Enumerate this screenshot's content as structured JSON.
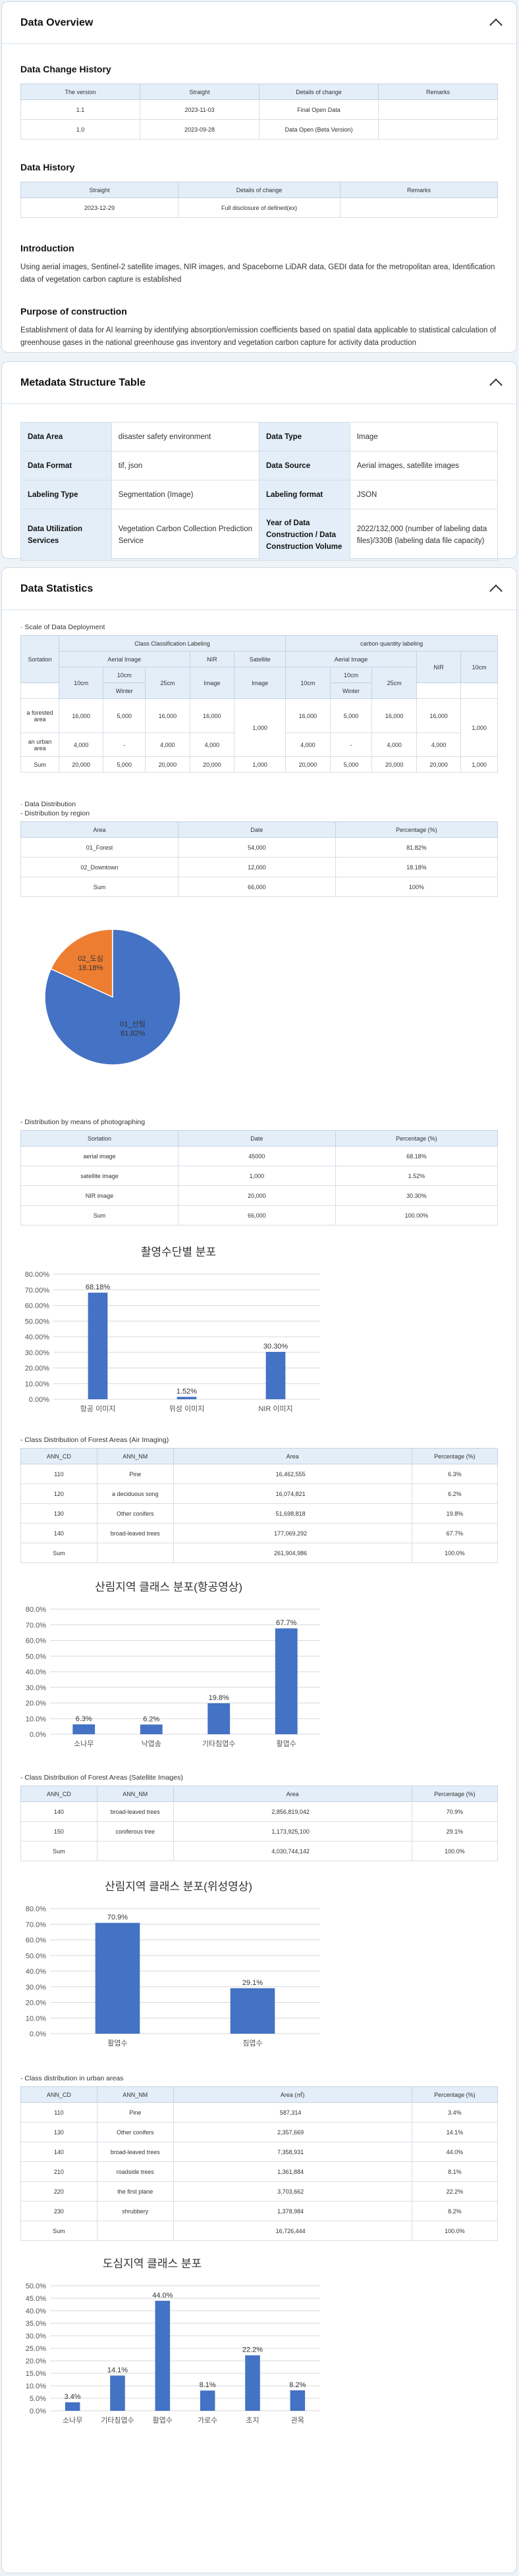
{
  "overview": {
    "title": "Data Overview",
    "change_history": {
      "title": "Data Change History",
      "headers": [
        "The version",
        "Straight",
        "Details of change",
        "Remarks"
      ],
      "rows": [
        [
          "1.1",
          "2023-11-03",
          "Final Open Data",
          ""
        ],
        [
          "1.0",
          "2023-09-28",
          "Data Open (Beta Version)",
          ""
        ]
      ]
    },
    "data_history": {
      "title": "Data History",
      "headers": [
        "Straight",
        "Details of change",
        "Remarks"
      ],
      "rows": [
        [
          "2023-12-29",
          "Full disclosure of defined(ex)",
          ""
        ]
      ]
    },
    "intro": {
      "title": "Introduction",
      "text": "Using aerial images, Sentinel-2 satellite images, NIR images, and Spaceborne LiDAR data, GEDI data for the metropolitan area, Identification data of vegetation carbon capture is established"
    },
    "purpose": {
      "title": "Purpose of construction",
      "text": "Establishment of data for AI learning by identifying absorption/emission coefficients based on spatial data applicable to statistical calculation of greenhouse gases in the national greenhouse gas inventory and vegetation carbon capture for activity data production"
    }
  },
  "metadata": {
    "title": "Metadata Structure Table",
    "rows": [
      [
        "Data Area",
        "disaster safety environment",
        "Data Type",
        "Image"
      ],
      [
        "Data Format",
        "tif, json",
        "Data Source",
        "Aerial images, satellite images"
      ],
      [
        "Labeling Type",
        "Segmentation (Image)",
        "Labeling format",
        "JSON"
      ],
      [
        "Data Utilization Services",
        "Vegetation Carbon Collection Prediction Service",
        "Year of Data Construction / Data Construction Volume",
        "2022/132,000 (number of labeling data files)/330B (labeling data file capacity)"
      ]
    ]
  },
  "stats": {
    "title": "Data Statistics",
    "scale": {
      "caption": "· Scale of Data Deployment",
      "group1": "Class Classification Labeling",
      "group2": "carbon quantity labeling",
      "sortation": "Sortation",
      "aerial": "Aerial Image",
      "nir": "NIR",
      "satellite": "Satellite",
      "image": "Image",
      "winter": "Winter",
      "res": [
        "10cm",
        "10cm",
        "25cm"
      ],
      "rows": [
        {
          "label": "a forested area",
          "v": [
            "16,000",
            "5,000",
            "16,000",
            "16,000",
            "",
            "16,000",
            "5,000",
            "16,000",
            "16,000",
            ""
          ]
        },
        {
          "label": "an urban area",
          "v": [
            "4,000",
            "-",
            "4,000",
            "4,000",
            "",
            "4,000",
            "-",
            "4,000",
            "4,000",
            ""
          ]
        },
        {
          "label": "Sum",
          "v": [
            "20,000",
            "5,000",
            "20,000",
            "20,000",
            "1,000",
            "20,000",
            "5,000",
            "20,000",
            "20,000",
            "1,000"
          ]
        }
      ],
      "merged_sat": "1,000",
      "merged_last": "1,000"
    },
    "dist": {
      "caption1": "· Data Distribution",
      "caption2": "- Distribution by region",
      "headers": [
        "Area",
        "Date",
        "Percentage (%)"
      ],
      "rows": [
        [
          "01_Forest",
          "54,000",
          "81.82%"
        ],
        [
          "02_Downtown",
          "12,000",
          "18.18%"
        ],
        [
          "Sum",
          "66,000",
          "100%"
        ]
      ]
    },
    "means": {
      "caption": "- Distribution by means of photographing",
      "headers": [
        "Sortation",
        "Date",
        "Percentage (%)"
      ],
      "rows": [
        [
          "aerial image",
          "45000",
          "68.18%"
        ],
        [
          "satellite image",
          "1,000",
          "1.52%"
        ],
        [
          "NIR image",
          "20,000",
          "30.30%"
        ],
        [
          "Sum",
          "66,000",
          "100.00%"
        ]
      ]
    },
    "forest_air": {
      "caption": "- Class Distribution of Forest Areas (Air Imaging)",
      "headers": [
        "ANN_CD",
        "ANN_NM",
        "Area",
        "Percentage (%)"
      ],
      "rows": [
        [
          "110",
          "Pine",
          "16,462,555",
          "6.3%"
        ],
        [
          "120",
          "a deciduous song",
          "16,074,821",
          "6.2%"
        ],
        [
          "130",
          "Other conifers",
          "51,698,818",
          "19.8%"
        ],
        [
          "140",
          "broad-leaved trees",
          "177,069,292",
          "67.7%"
        ],
        [
          "Sum",
          "",
          "261,904,986",
          "100.0%"
        ]
      ]
    },
    "forest_sat": {
      "caption": "- Class Distribution of Forest Areas (Satellite Images)",
      "headers": [
        "ANN_CD",
        "ANN_NM",
        "Area",
        "Percentage (%)"
      ],
      "rows": [
        [
          "140",
          "broad-leaved trees",
          "2,856,819,042",
          "70.9%"
        ],
        [
          "150",
          "coniferous tree",
          "1,173,925,100",
          "29.1%"
        ],
        [
          "Sum",
          "",
          "4,030,744,142",
          "100.0%"
        ]
      ]
    },
    "urban": {
      "caption": "- Class distribution in urban areas",
      "headers": [
        "ANN_CD",
        "ANN_NM",
        "Area (㎡)",
        "Percentage (%)"
      ],
      "rows": [
        [
          "110",
          "Pine",
          "587,314",
          "3.4%"
        ],
        [
          "130",
          "Other conifers",
          "2,357,669",
          "14.1%"
        ],
        [
          "140",
          "broad-leaved trees",
          "7,358,931",
          "44.0%"
        ],
        [
          "210",
          "roadside trees",
          "1,361,884",
          "8.1%"
        ],
        [
          "220",
          "the first plane",
          "3,703,662",
          "22.2%"
        ],
        [
          "230",
          "shrubbery",
          "1,378,984",
          "8.2%"
        ],
        [
          "Sum",
          "",
          "16,726,444",
          "100.0%"
        ]
      ]
    }
  },
  "chart_data": [
    {
      "type": "pie",
      "labels": [
        "01_산림",
        "02_도심"
      ],
      "values": [
        81.82,
        18.18
      ],
      "value_labels": [
        "81.82%",
        "18.18%"
      ],
      "colors": [
        "#4472c4",
        "#ed7d31"
      ]
    },
    {
      "type": "bar",
      "title": "촬영수단별 분포",
      "categories": [
        "항공 이미지",
        "위성 이미지",
        "NIR 이미지"
      ],
      "values": [
        68.18,
        1.52,
        30.3
      ],
      "value_labels": [
        "68.18%",
        "1.52%",
        "30.30%"
      ],
      "yticks": [
        "0.00%",
        "10.00%",
        "20.00%",
        "30.00%",
        "40.00%",
        "50.00%",
        "60.00%",
        "70.00%",
        "80.00%"
      ],
      "ylim": [
        0,
        80
      ],
      "grid": true,
      "color": "#4472c4"
    },
    {
      "type": "bar",
      "title": "산림지역 클래스 분포(항공영상)",
      "categories": [
        "소나무",
        "낙엽송",
        "기타침엽수",
        "활엽수"
      ],
      "values": [
        6.3,
        6.2,
        19.8,
        67.7
      ],
      "value_labels": [
        "6.3%",
        "6.2%",
        "19.8%",
        "67.7%"
      ],
      "yticks": [
        "0.0%",
        "10.0%",
        "20.0%",
        "30.0%",
        "40.0%",
        "50.0%",
        "60.0%",
        "70.0%",
        "80.0%"
      ],
      "ylim": [
        0,
        80
      ],
      "grid": true,
      "color": "#4472c4"
    },
    {
      "type": "bar",
      "title": "산림지역 클래스 분포(위성영상)",
      "categories": [
        "활엽수",
        "침엽수"
      ],
      "values": [
        70.9,
        29.1
      ],
      "value_labels": [
        "70.9%",
        "29.1%"
      ],
      "yticks": [
        "0.0%",
        "10.0%",
        "20.0%",
        "30.0%",
        "40.0%",
        "50.0%",
        "60.0%",
        "70.0%",
        "80.0%"
      ],
      "ylim": [
        0,
        80
      ],
      "grid": true,
      "color": "#4472c4"
    },
    {
      "type": "bar",
      "title": "도심지역 클래스 분포",
      "categories": [
        "소나무",
        "기타침엽수",
        "활엽수",
        "가로수",
        "초지",
        "관목"
      ],
      "values": [
        3.4,
        14.1,
        44.0,
        8.1,
        22.2,
        8.2
      ],
      "value_labels": [
        "3.4%",
        "14.1%",
        "44.0%",
        "8.1%",
        "22.2%",
        "8.2%"
      ],
      "yticks": [
        "0.0%",
        "5.0%",
        "10.0%",
        "15.0%",
        "20.0%",
        "25.0%",
        "30.0%",
        "35.0%",
        "40.0%",
        "45.0%",
        "50.0%"
      ],
      "ylim": [
        0,
        50
      ],
      "grid": true,
      "color": "#4472c4"
    }
  ]
}
